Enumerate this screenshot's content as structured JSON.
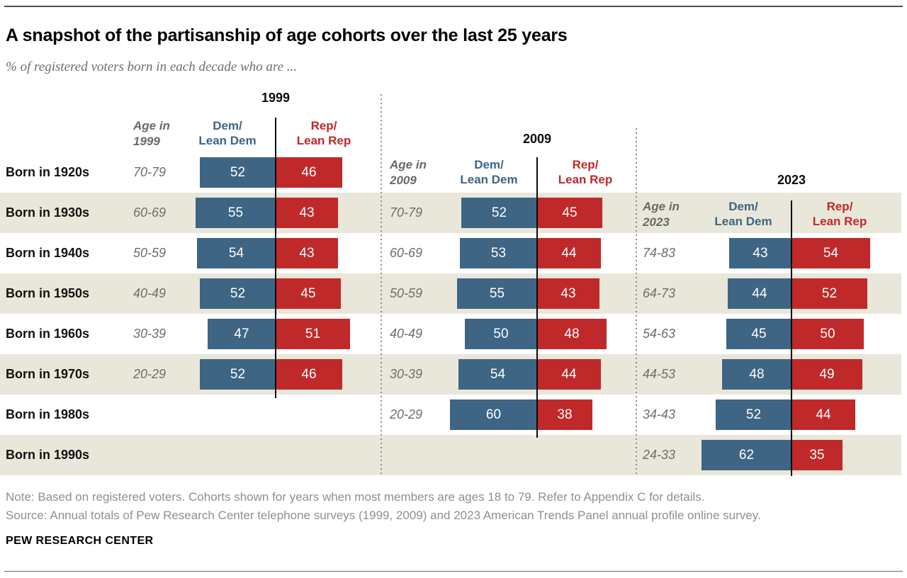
{
  "header": {
    "title": "A snapshot of the partisanship of age cohorts over the last 25 years",
    "subtitle": "% of registered voters born in each decade who are ..."
  },
  "footer": {
    "note": "Note: Based on registered voters. Cohorts shown for years when most members are ages 18 to 79. Refer to Appendix C for details.",
    "source": "Source: Annual totals of Pew Research Center telephone surveys (1999, 2009) and 2023 American Trends Panel annual profile online survey.",
    "brand": "PEW RESEARCH CENTER"
  },
  "colors": {
    "dem": "#3e6583",
    "rep": "#c0292a",
    "band": "#e9e7da",
    "axis": "#0a0a0a"
  },
  "chart_data": {
    "type": "bar",
    "title": "A snapshot of the partisanship of age cohorts over the last 25 years",
    "subtitle": "% of registered voters born in each decade who are ...",
    "unit": "percent",
    "categories": [
      "Born in 1920s",
      "Born in 1930s",
      "Born in 1940s",
      "Born in 1950s",
      "Born in 1960s",
      "Born in 1970s",
      "Born in 1980s",
      "Born in 1990s"
    ],
    "panels": [
      {
        "year": "1999",
        "age_header_lines": [
          "Age in",
          "1999"
        ],
        "dem_header_lines": [
          "Dem/",
          "Lean Dem"
        ],
        "rep_header_lines": [
          "Rep/",
          "Lean Rep"
        ],
        "row_start": 0,
        "rows": [
          {
            "cohort": "Born in 1920s",
            "age": "70-79",
            "dem": 52,
            "rep": 46
          },
          {
            "cohort": "Born in 1930s",
            "age": "60-69",
            "dem": 55,
            "rep": 43
          },
          {
            "cohort": "Born in 1940s",
            "age": "50-59",
            "dem": 54,
            "rep": 43
          },
          {
            "cohort": "Born in 1950s",
            "age": "40-49",
            "dem": 52,
            "rep": 45
          },
          {
            "cohort": "Born in 1960s",
            "age": "30-39",
            "dem": 47,
            "rep": 51
          },
          {
            "cohort": "Born in 1970s",
            "age": "20-29",
            "dem": 52,
            "rep": 46
          }
        ]
      },
      {
        "year": "2009",
        "age_header_lines": [
          "Age in",
          "2009"
        ],
        "dem_header_lines": [
          "Dem/",
          "Lean Dem"
        ],
        "rep_header_lines": [
          "Rep/",
          "Lean Rep"
        ],
        "row_start": 1,
        "rows": [
          {
            "cohort": "Born in 1930s",
            "age": "70-79",
            "dem": 52,
            "rep": 45
          },
          {
            "cohort": "Born in 1940s",
            "age": "60-69",
            "dem": 53,
            "rep": 44
          },
          {
            "cohort": "Born in 1950s",
            "age": "50-59",
            "dem": 55,
            "rep": 43
          },
          {
            "cohort": "Born in 1960s",
            "age": "40-49",
            "dem": 50,
            "rep": 48
          },
          {
            "cohort": "Born in 1970s",
            "age": "30-39",
            "dem": 54,
            "rep": 44
          },
          {
            "cohort": "Born in 1980s",
            "age": "20-29",
            "dem": 60,
            "rep": 38
          }
        ]
      },
      {
        "year": "2023",
        "age_header_lines": [
          "Age in",
          "2023"
        ],
        "dem_header_lines": [
          "Dem/",
          "Lean Dem"
        ],
        "rep_header_lines": [
          "Rep/",
          "Lean Rep"
        ],
        "row_start": 2,
        "rows": [
          {
            "cohort": "Born in 1940s",
            "age": "74-83",
            "dem": 43,
            "rep": 54
          },
          {
            "cohort": "Born in 1950s",
            "age": "64-73",
            "dem": 44,
            "rep": 52
          },
          {
            "cohort": "Born in 1960s",
            "age": "54-63",
            "dem": 45,
            "rep": 50
          },
          {
            "cohort": "Born in 1970s",
            "age": "44-53",
            "dem": 48,
            "rep": 49
          },
          {
            "cohort": "Born in 1980s",
            "age": "34-43",
            "dem": 52,
            "rep": 44
          },
          {
            "cohort": "Born in 1990s",
            "age": "24-33",
            "dem": 62,
            "rep": 35
          }
        ]
      }
    ],
    "legend_position": "column-headers",
    "grid": false
  }
}
